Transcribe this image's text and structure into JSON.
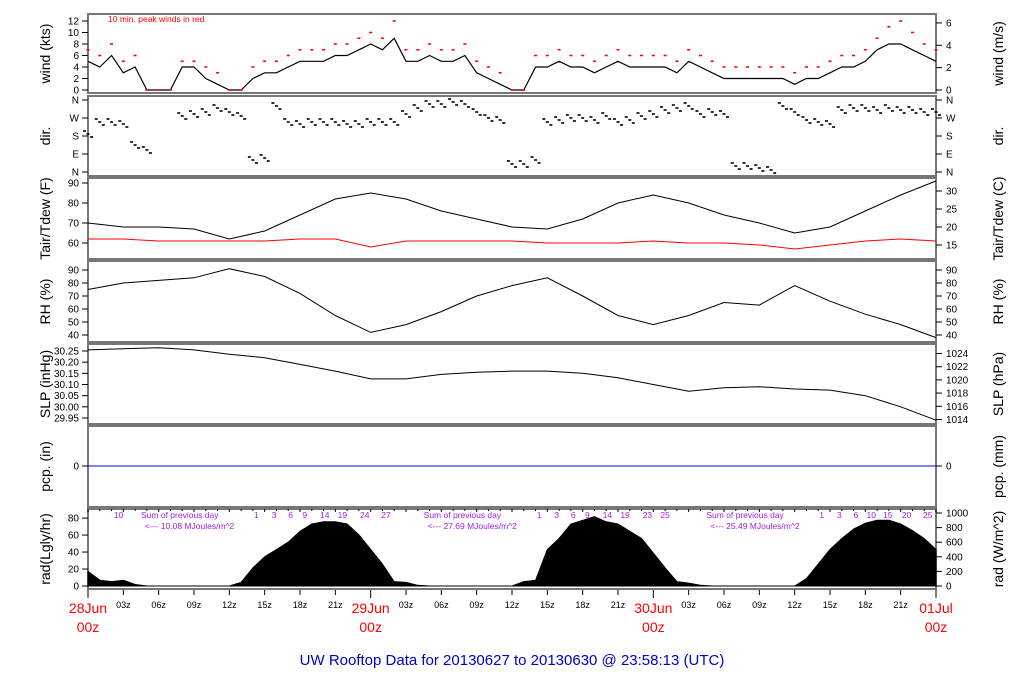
{
  "chart_data": {
    "type": "line",
    "title": "UW Rooftop Data for 20130627  to  20130630 @ 23:58:13  (UTC)",
    "x_axis": {
      "hours_range": [
        0,
        72
      ],
      "tick_labels": [
        "03z",
        "06z",
        "09z",
        "12z",
        "15z",
        "18z",
        "21z",
        "03z",
        "06z",
        "09z",
        "12z",
        "15z",
        "18z",
        "21z",
        "03z",
        "06z",
        "09z",
        "12z",
        "15z",
        "18z",
        "21z"
      ],
      "tick_hours": [
        3,
        6,
        9,
        12,
        15,
        18,
        21,
        27,
        30,
        33,
        36,
        39,
        42,
        45,
        51,
        54,
        57,
        60,
        63,
        66,
        69
      ],
      "dates": [
        {
          "day": "28Jun",
          "time": "00z",
          "hour": 0
        },
        {
          "day": "29Jun",
          "time": "00z",
          "hour": 24
        },
        {
          "day": "30Jun",
          "time": "00z",
          "hour": 48
        },
        {
          "day": "01Jul",
          "time": "00z",
          "hour": 72
        }
      ]
    },
    "panels": {
      "wind": {
        "ylabel": "wind (kts)",
        "ylabel_right": "wind (m/s)",
        "annotation": "10 min. peak winds in red",
        "ylim": [
          0,
          12
        ],
        "yticks": [
          "0",
          "2",
          "4",
          "6",
          "8",
          "10",
          "12"
        ],
        "yticks_right": [
          "0",
          "2",
          "4",
          "6"
        ],
        "series": [
          {
            "name": "wind",
            "color": "#000000",
            "interval_hours": 1,
            "values": [
              5,
              4,
              6,
              3,
              4,
              0,
              0,
              0,
              4,
              4,
              2,
              1,
              0,
              0,
              2,
              3,
              3,
              4,
              5,
              5,
              5,
              6,
              6,
              7,
              8,
              7,
              9,
              5,
              5,
              6,
              5,
              5,
              6,
              3,
              2,
              1,
              0,
              0,
              4,
              4,
              5,
              4,
              4,
              3,
              4,
              5,
              4,
              4,
              4,
              4,
              3,
              5,
              4,
              3,
              2,
              2,
              2,
              2,
              2,
              2,
              1,
              2,
              2,
              3,
              4,
              4,
              5,
              7,
              8,
              8,
              7,
              6,
              5
            ]
          },
          {
            "name": "peak",
            "color": "#ff0000",
            "interval_hours": 1,
            "values": [
              7,
              6,
              8,
              5,
              6,
              0,
              0,
              0,
              5,
              5,
              4,
              3,
              0,
              0,
              4,
              5,
              5,
              6,
              7,
              7,
              7,
              8,
              8,
              9,
              10,
              9,
              12,
              7,
              7,
              8,
              7,
              7,
              8,
              5,
              4,
              3,
              0,
              0,
              6,
              6,
              7,
              6,
              6,
              5,
              6,
              7,
              6,
              6,
              6,
              6,
              5,
              7,
              6,
              5,
              4,
              4,
              4,
              4,
              4,
              4,
              3,
              4,
              4,
              5,
              6,
              6,
              7,
              9,
              11,
              12,
              10,
              8,
              7
            ]
          }
        ]
      },
      "dir": {
        "ylabel": "dir.",
        "ylabel_right": "dir.",
        "yticks": [
          "N",
          "W",
          "S",
          "E",
          "N"
        ],
        "series": [
          {
            "name": "direction_deg",
            "interval_hours": 1,
            "values": [
              190,
              250,
              250,
              240,
              135,
              110,
              null,
              null,
              280,
              290,
              300,
              320,
              300,
              280,
              60,
              70,
              330,
              250,
              240,
              250,
              250,
              250,
              240,
              240,
              250,
              250,
              250,
              290,
              320,
              340,
              340,
              350,
              340,
              300,
              270,
              260,
              40,
              40,
              60,
              250,
              260,
              270,
              270,
              260,
              280,
              250,
              260,
              280,
              290,
              310,
              320,
              330,
              290,
              300,
              290,
              30,
              30,
              20,
              10,
              330,
              300,
              260,
              250,
              240,
              310,
              320,
              320,
              310,
              320,
              310,
              310,
              300,
              300
            ]
          }
        ]
      },
      "temp": {
        "ylabel": "Tair/Tdew (F)",
        "ylabel_right": "Tair/Tdew (C)",
        "yticks": [
          "60",
          "70",
          "80",
          "90"
        ],
        "yticks_right": [
          "15",
          "20",
          "25",
          "30"
        ],
        "series": [
          {
            "name": "Tair",
            "color": "#000000",
            "interval_hours": 3,
            "values": [
              70,
              68,
              68,
              67,
              62,
              66,
              74,
              82,
              85,
              82,
              76,
              72,
              68,
              67,
              72,
              80,
              84,
              80,
              74,
              70,
              65,
              68,
              76,
              84,
              91
            ]
          },
          {
            "name": "Tdew",
            "color": "#ff0000",
            "interval_hours": 3,
            "values": [
              62,
              62,
              61,
              61,
              61,
              61,
              62,
              62,
              58,
              61,
              61,
              61,
              61,
              60,
              60,
              60,
              61,
              60,
              60,
              59,
              57,
              59,
              61,
              62,
              61
            ]
          }
        ]
      },
      "rh": {
        "ylabel": "RH (%)",
        "ylabel_right": "RH (%)",
        "yticks": [
          "40",
          "50",
          "60",
          "70",
          "80",
          "90"
        ],
        "series": [
          {
            "name": "RH",
            "color": "#000000",
            "interval_hours": 3,
            "values": [
              75,
              80,
              82,
              84,
              91,
              85,
              72,
              55,
              42,
              48,
              58,
              70,
              78,
              84,
              70,
              55,
              48,
              55,
              65,
              63,
              78,
              66,
              56,
              48,
              38
            ]
          }
        ]
      },
      "slp": {
        "ylabel": "SLP (inHg)",
        "ylabel_right": "SLP (hPa)",
        "yticks": [
          "29.95",
          "30.00",
          "30.05",
          "30.10",
          "30.15",
          "30.20",
          "30.25"
        ],
        "yticks_right": [
          "1014",
          "1016",
          "1018",
          "1020",
          "1022",
          "1024"
        ],
        "series": [
          {
            "name": "SLP",
            "color": "#000000",
            "interval_hours": 3,
            "values": [
              30.255,
              30.26,
              30.265,
              30.255,
              30.235,
              30.22,
              30.19,
              30.16,
              30.125,
              30.125,
              30.145,
              30.155,
              30.16,
              30.16,
              30.15,
              30.13,
              30.1,
              30.07,
              30.085,
              30.09,
              30.08,
              30.075,
              30.05,
              30.0,
              29.94
            ]
          }
        ]
      },
      "pcp": {
        "ylabel": "pcp. (in)",
        "ylabel_right": "pcp. (mm)",
        "yticks": [
          "0"
        ],
        "yticks_right": [
          "0"
        ],
        "series": [
          {
            "name": "precip",
            "color": "#0000ff",
            "value": 0
          }
        ]
      },
      "rad": {
        "ylabel": "rad(Lgly/hr)",
        "ylabel_right": "rad (W/m^2)",
        "yticks": [
          "0",
          "20",
          "40",
          "60",
          "80"
        ],
        "yticks_right": [
          "0",
          "200",
          "400",
          "600",
          "800",
          "1000"
        ],
        "series": [
          {
            "name": "radiation_Wm2",
            "color": "#000000",
            "interval_hours": 1,
            "values": [
              200,
              80,
              60,
              80,
              20,
              0,
              0,
              0,
              0,
              0,
              0,
              0,
              0,
              50,
              250,
              400,
              500,
              600,
              750,
              850,
              880,
              880,
              850,
              700,
              500,
              300,
              60,
              50,
              10,
              0,
              0,
              0,
              0,
              0,
              0,
              0,
              0,
              60,
              80,
              500,
              650,
              850,
              900,
              950,
              880,
              850,
              750,
              650,
              450,
              250,
              60,
              40,
              10,
              0,
              0,
              0,
              0,
              0,
              0,
              0,
              0,
              100,
              300,
              500,
              650,
              780,
              860,
              900,
              900,
              850,
              760,
              650,
              500
            ]
          }
        ],
        "daily_sums": [
          {
            "label": "Sum of previous day",
            "value": "<--- 10.08 MJoules/m^2",
            "hourly_marks": [
              "10"
            ]
          },
          {
            "label": "Sum of previous day",
            "value": "<--- 27.69 MJoules/m^2",
            "hourly_marks": [
              "1",
              "3",
              "6",
              "9",
              "14",
              "19",
              "24",
              "27"
            ]
          },
          {
            "label": "Sum of previous day",
            "value": "<--- 25.49 MJoules/m^2",
            "hourly_marks": [
              "1",
              "3",
              "6",
              "9",
              "14",
              "19",
              "23",
              "25"
            ]
          },
          {
            "label": "",
            "value": "",
            "hourly_marks": [
              "1",
              "3",
              "6",
              "10",
              "15",
              "20",
              "25"
            ]
          }
        ]
      }
    }
  }
}
